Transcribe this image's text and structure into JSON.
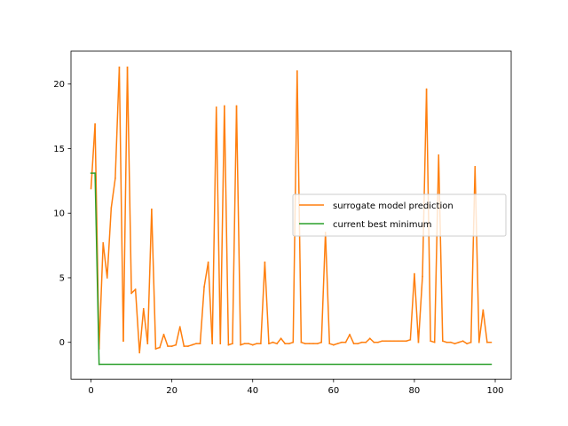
{
  "chart_data": {
    "type": "line",
    "title": "",
    "xlabel": "",
    "ylabel": "",
    "xlim": [
      -4.95,
      103.95
    ],
    "ylim": [
      -2.85,
      22.55
    ],
    "xticks": [
      0,
      20,
      40,
      60,
      80,
      100
    ],
    "yticks": [
      0,
      5,
      10,
      15,
      20
    ],
    "grid": false,
    "legend_position": "center-right",
    "series": [
      {
        "name": "surrogate model prediction",
        "color": "#ff7f0e",
        "x": [
          0,
          1,
          2,
          3,
          4,
          5,
          6,
          7,
          8,
          9,
          10,
          11,
          12,
          13,
          14,
          15,
          16,
          17,
          18,
          19,
          20,
          21,
          22,
          23,
          24,
          25,
          26,
          27,
          28,
          29,
          30,
          31,
          32,
          33,
          34,
          35,
          36,
          37,
          38,
          39,
          40,
          41,
          42,
          43,
          44,
          45,
          46,
          47,
          48,
          49,
          50,
          51,
          52,
          53,
          54,
          55,
          56,
          57,
          58,
          59,
          60,
          61,
          62,
          63,
          64,
          65,
          66,
          67,
          68,
          69,
          70,
          71,
          72,
          73,
          74,
          75,
          76,
          77,
          78,
          79,
          80,
          81,
          82,
          83,
          84,
          85,
          86,
          87,
          88,
          89,
          90,
          91,
          92,
          93,
          94,
          95,
          96,
          97,
          98,
          99
        ],
        "values": [
          11.9,
          16.9,
          -0.5,
          7.7,
          5.0,
          10.4,
          12.7,
          21.3,
          0.1,
          21.3,
          3.8,
          4.1,
          -0.8,
          2.6,
          -0.1,
          10.3,
          -0.5,
          -0.4,
          0.6,
          -0.3,
          -0.3,
          -0.2,
          1.2,
          -0.3,
          -0.3,
          -0.2,
          -0.1,
          -0.1,
          4.3,
          6.2,
          -0.1,
          18.2,
          -0.1,
          18.3,
          -0.2,
          -0.1,
          18.3,
          -0.2,
          -0.1,
          -0.1,
          -0.2,
          -0.1,
          -0.1,
          6.2,
          -0.1,
          0.0,
          -0.1,
          0.3,
          -0.1,
          -0.1,
          0.0,
          21.0,
          0.0,
          -0.1,
          -0.1,
          -0.1,
          -0.1,
          0.0,
          8.5,
          -0.1,
          -0.2,
          -0.1,
          0.0,
          0.0,
          0.6,
          -0.1,
          -0.1,
          0.0,
          0.0,
          0.3,
          0.0,
          0.0,
          0.1,
          0.1,
          0.1,
          0.1,
          0.1,
          0.1,
          0.1,
          0.2,
          5.3,
          0.0,
          5.1,
          19.6,
          0.1,
          0.0,
          14.5,
          0.1,
          0.0,
          0.0,
          -0.1,
          0.0,
          0.1,
          -0.1,
          0.0,
          13.6,
          0.0,
          2.5,
          0.0,
          0.0
        ]
      },
      {
        "name": "current best minimum",
        "color": "#2ca02c",
        "x": [
          0,
          1,
          2,
          99
        ],
        "values": [
          13.1,
          13.1,
          -1.7,
          -1.7
        ]
      }
    ]
  }
}
